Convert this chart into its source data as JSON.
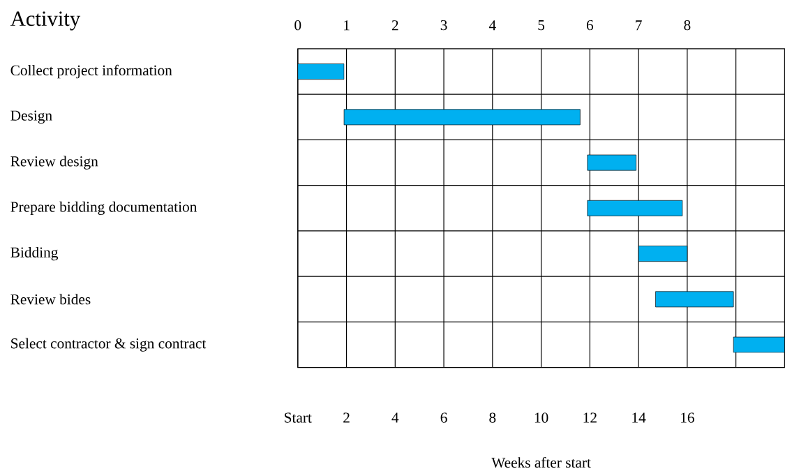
{
  "chart_data": {
    "type": "bar",
    "orientation": "horizontal",
    "ylabel": "Activity",
    "xlabel": "Weeks after start",
    "categories": [
      "Collect project information",
      "Design",
      "Review design",
      "Prepare bidding documentation",
      "Bidding",
      "Review bides",
      "Select contractor & sign contract"
    ],
    "base": [
      0,
      1.9,
      11.9,
      11.9,
      14,
      14.7,
      17.9
    ],
    "values": [
      1.9,
      9.7,
      2,
      3.9,
      2,
      3.2,
      2.1
    ],
    "color": "#00b0f0",
    "xlim": [
      0,
      20
    ],
    "xticks": [
      {
        "value": 0,
        "label": "Start"
      },
      2,
      4,
      6,
      8,
      10,
      12,
      14,
      16,
      {
        "value": 18,
        "label": null
      }
    ],
    "x2lim": [
      0,
      10
    ],
    "x2ticks": [
      0,
      1,
      2,
      3,
      4,
      5,
      6,
      7,
      8
    ],
    "grid": true
  }
}
